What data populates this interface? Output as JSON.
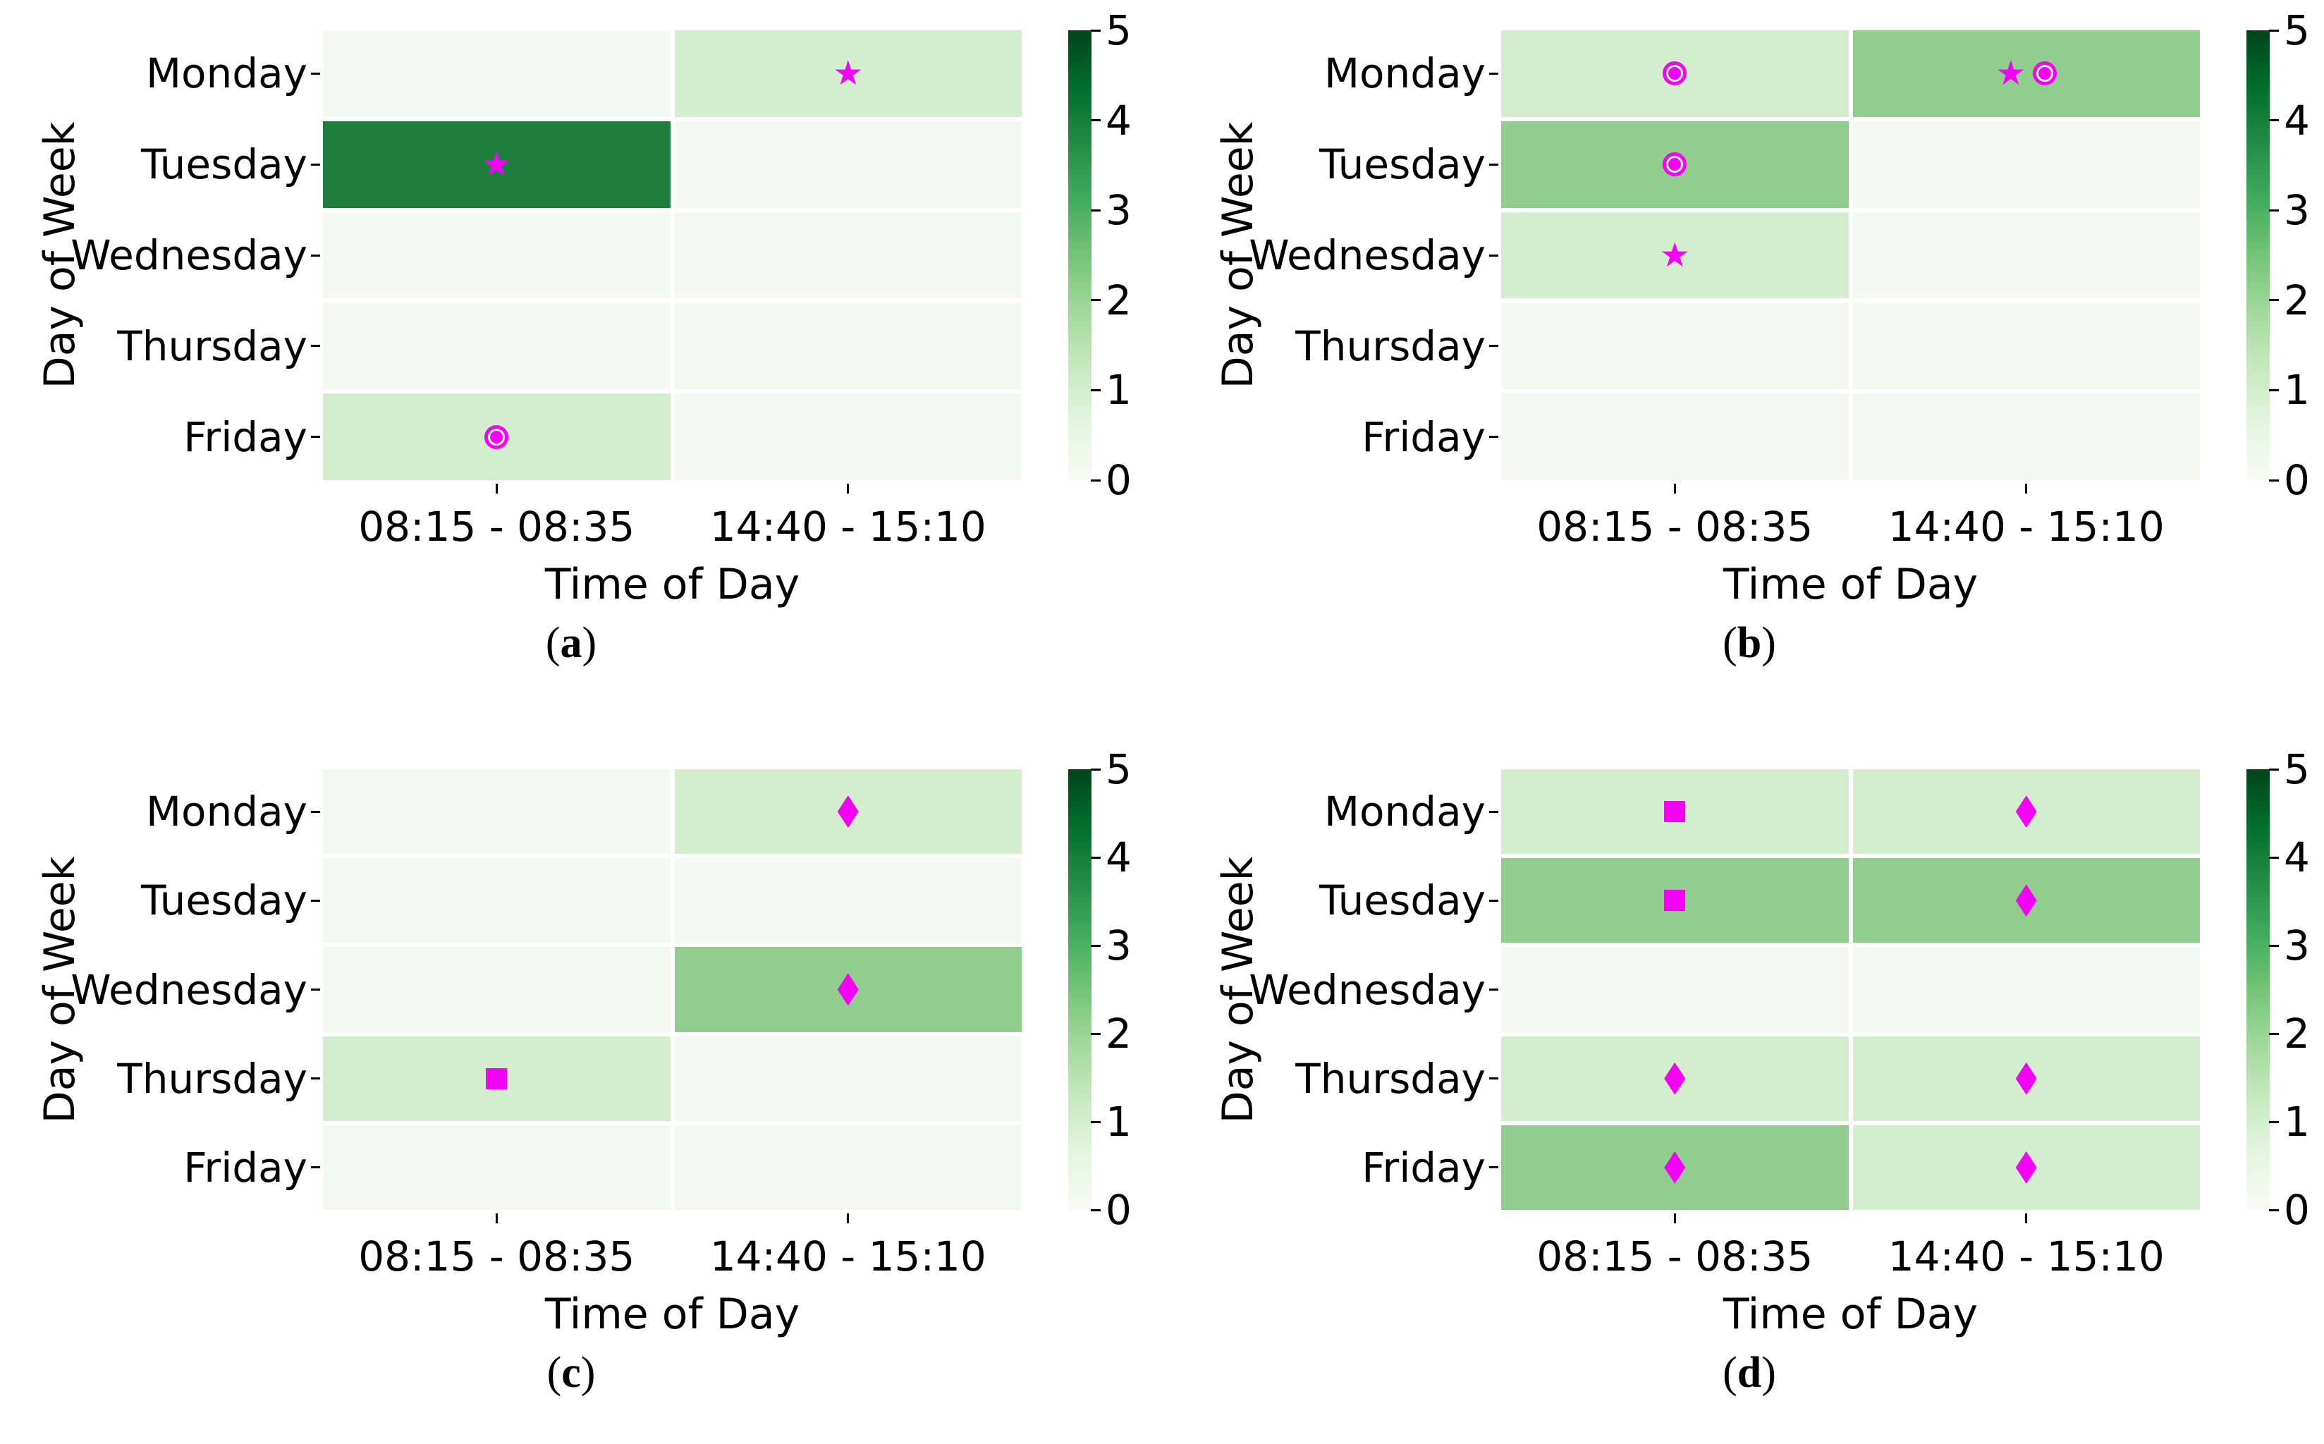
{
  "figure_title": "",
  "colors": {
    "background": "#ffffff",
    "text": "#000000",
    "marker": "#f303f3",
    "cell_values": {
      "0": "#f3f9f0",
      "1": "#d4edcf",
      "2": "#91cd8e",
      "4": "#1e7e3d"
    },
    "colorbar_stops": [
      "#f7fcf5",
      "#e5f5e0",
      "#c7e9c0",
      "#a1d99b",
      "#74c476",
      "#41ab5d",
      "#238b45",
      "#006d2c",
      "#00441b"
    ]
  },
  "caption_open": "(",
  "caption_close": ")",
  "chart_data": [
    {
      "type": "heatmap",
      "id": "a",
      "caption_letter": "a",
      "xlabel": "Time of Day",
      "ylabel": "Day of Week",
      "x_categories": [
        "08:15 - 08:35",
        "14:40 - 15:10"
      ],
      "y_categories": [
        "Monday",
        "Tuesday",
        "Wednesday",
        "Thursday",
        "Friday"
      ],
      "values": [
        [
          0,
          1
        ],
        [
          4,
          0
        ],
        [
          0,
          0
        ],
        [
          0,
          0
        ],
        [
          1,
          0
        ]
      ],
      "markers": [
        [
          [],
          [
            "star"
          ]
        ],
        [
          [
            "star"
          ],
          []
        ],
        [
          [],
          []
        ],
        [
          [],
          []
        ],
        [
          [
            "circle-dot"
          ],
          []
        ]
      ],
      "vmin": 0,
      "vmax": 5,
      "colorbar_ticks": [
        0,
        1,
        2,
        3,
        4,
        5
      ],
      "legend_position": "right-colorbar",
      "grid": false
    },
    {
      "type": "heatmap",
      "id": "b",
      "caption_letter": "b",
      "xlabel": "Time of Day",
      "ylabel": "Day of Week",
      "x_categories": [
        "08:15 - 08:35",
        "14:40 - 15:10"
      ],
      "y_categories": [
        "Monday",
        "Tuesday",
        "Wednesday",
        "Thursday",
        "Friday"
      ],
      "values": [
        [
          1,
          2
        ],
        [
          2,
          0
        ],
        [
          1,
          0
        ],
        [
          0,
          0
        ],
        [
          0,
          0
        ]
      ],
      "markers": [
        [
          [
            "circle-dot"
          ],
          [
            "star",
            "circle-dot"
          ]
        ],
        [
          [
            "circle-dot"
          ],
          []
        ],
        [
          [
            "star"
          ],
          []
        ],
        [
          [],
          []
        ],
        [
          [],
          []
        ]
      ],
      "vmin": 0,
      "vmax": 5,
      "colorbar_ticks": [
        0,
        1,
        2,
        3,
        4,
        5
      ],
      "legend_position": "right-colorbar",
      "grid": false
    },
    {
      "type": "heatmap",
      "id": "c",
      "caption_letter": "c",
      "xlabel": "Time of Day",
      "ylabel": "Day of Week",
      "x_categories": [
        "08:15 - 08:35",
        "14:40 - 15:10"
      ],
      "y_categories": [
        "Monday",
        "Tuesday",
        "Wednesday",
        "Thursday",
        "Friday"
      ],
      "values": [
        [
          0,
          1
        ],
        [
          0,
          0
        ],
        [
          0,
          2
        ],
        [
          1,
          0
        ],
        [
          0,
          0
        ]
      ],
      "markers": [
        [
          [],
          [
            "diamond"
          ]
        ],
        [
          [],
          []
        ],
        [
          [],
          [
            "diamond"
          ]
        ],
        [
          [
            "square"
          ],
          []
        ],
        [
          [],
          []
        ]
      ],
      "vmin": 0,
      "vmax": 5,
      "colorbar_ticks": [
        0,
        1,
        2,
        3,
        4,
        5
      ],
      "legend_position": "right-colorbar",
      "grid": false
    },
    {
      "type": "heatmap",
      "id": "d",
      "caption_letter": "d",
      "xlabel": "Time of Day",
      "ylabel": "Day of Week",
      "x_categories": [
        "08:15 - 08:35",
        "14:40 - 15:10"
      ],
      "y_categories": [
        "Monday",
        "Tuesday",
        "Wednesday",
        "Thursday",
        "Friday"
      ],
      "values": [
        [
          1,
          1
        ],
        [
          2,
          2
        ],
        [
          0,
          0
        ],
        [
          1,
          1
        ],
        [
          2,
          1
        ]
      ],
      "markers": [
        [
          [
            "square"
          ],
          [
            "diamond"
          ]
        ],
        [
          [
            "square"
          ],
          [
            "diamond"
          ]
        ],
        [
          [],
          []
        ],
        [
          [
            "diamond"
          ],
          [
            "diamond"
          ]
        ],
        [
          [
            "diamond"
          ],
          [
            "diamond"
          ]
        ]
      ],
      "vmin": 0,
      "vmax": 5,
      "colorbar_ticks": [
        0,
        1,
        2,
        3,
        4,
        5
      ],
      "legend_position": "right-colorbar",
      "grid": false
    }
  ]
}
